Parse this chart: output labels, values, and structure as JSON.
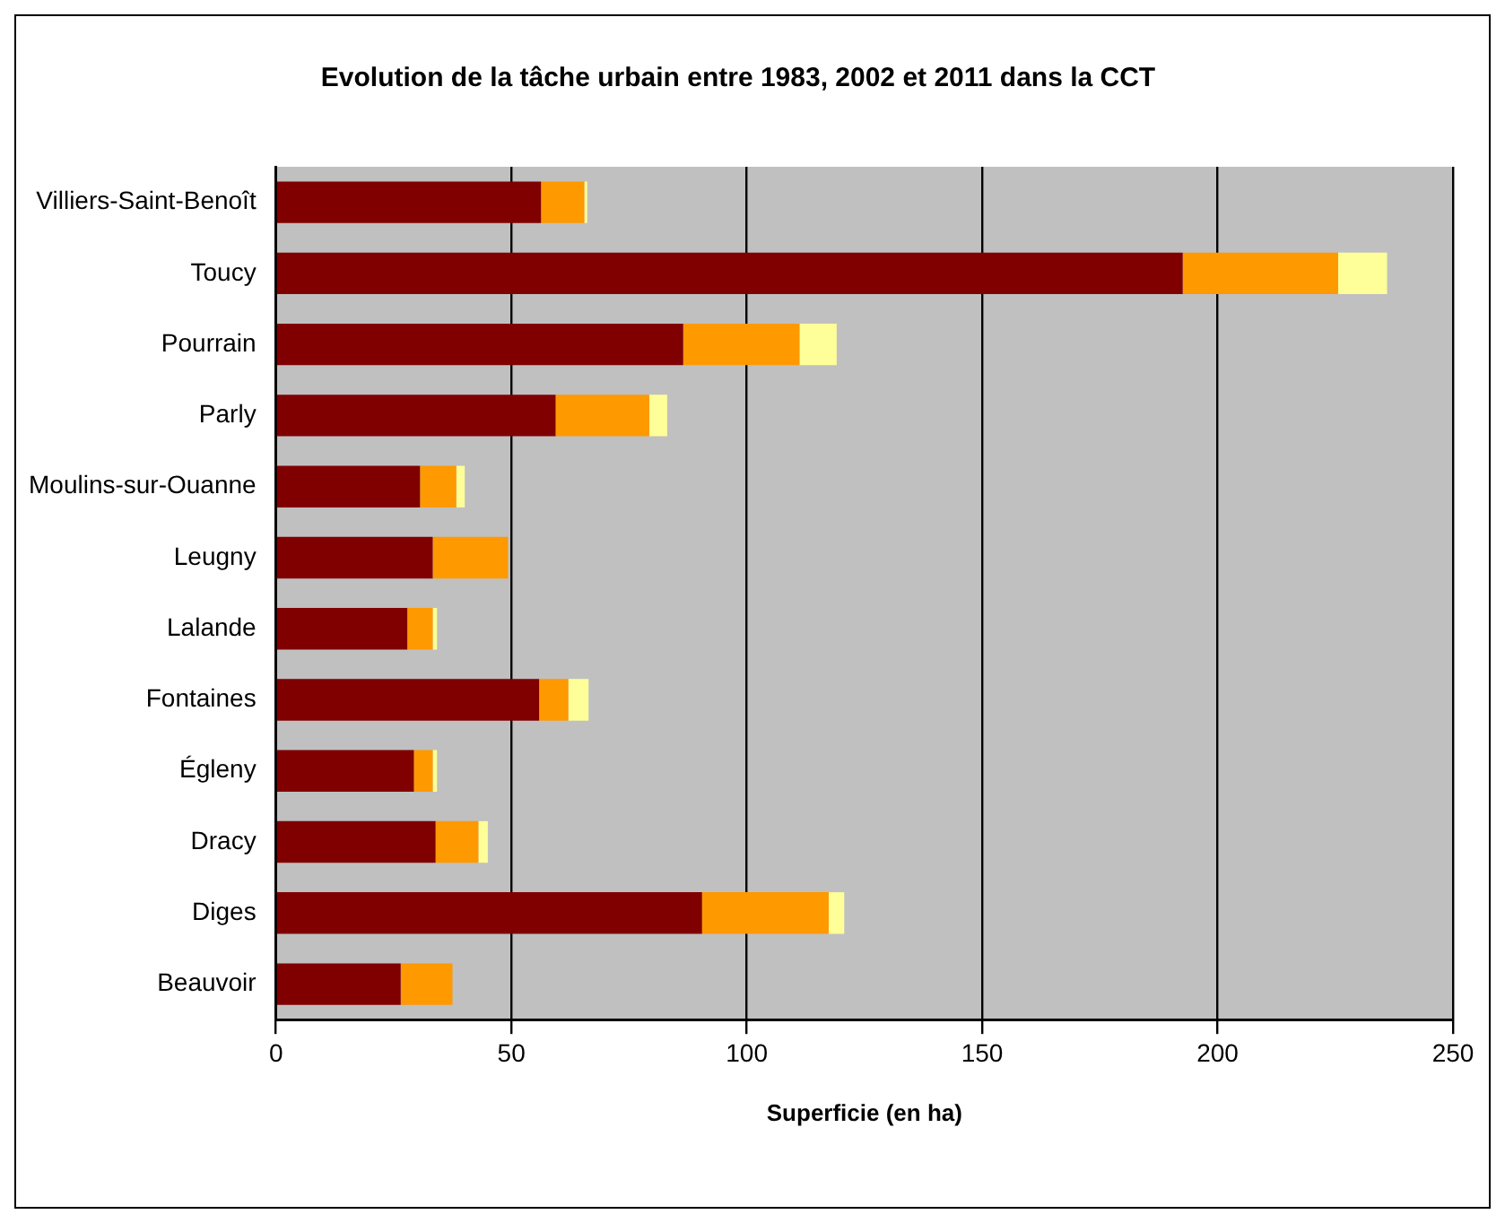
{
  "chart_data": {
    "type": "bar",
    "orientation": "horizontal",
    "stacked": true,
    "title": "Evolution de la tâche urbain entre 1983, 2002 et 2011 dans la CCT",
    "xlabel": "Superficie (en ha)",
    "categories": [
      "Villiers-Saint-Benoît",
      "Toucy",
      "Pourrain",
      "Parly",
      "Moulins-sur-Ouanne",
      "Leugny",
      "Lalande",
      "Fontaines",
      "Égleny",
      "Dracy",
      "Diges",
      "Beauvoir"
    ],
    "series": [
      {
        "color": "#800000",
        "values": [
          56.3,
          192.6,
          86.5,
          59.4,
          30.6,
          33.3,
          27.9,
          55.9,
          29.3,
          33.9,
          90.5,
          26.5
        ]
      },
      {
        "color": "#ff9900",
        "values": [
          9.2,
          33,
          24.7,
          19.9,
          7.7,
          16,
          5.4,
          6.2,
          4,
          9.1,
          26.9,
          11
        ]
      },
      {
        "color": "#ffff99",
        "values": [
          0.6,
          10.4,
          7.9,
          3.8,
          1.8,
          0,
          0.9,
          4.3,
          0.9,
          2,
          3.3,
          0
        ]
      }
    ],
    "xlim": [
      0,
      250
    ],
    "xticks": [
      0,
      50,
      100,
      150,
      200,
      250
    ],
    "grid": "x",
    "legend": false
  }
}
